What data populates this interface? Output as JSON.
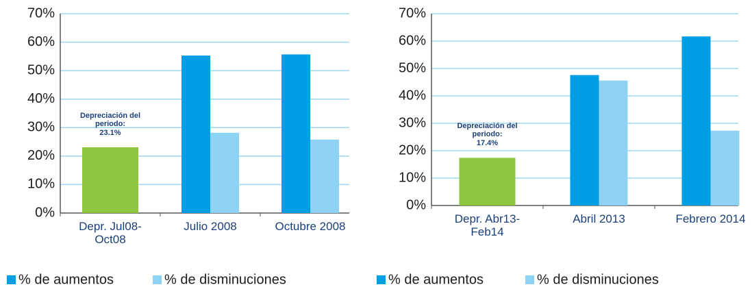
{
  "chart_data": [
    {
      "type": "bar",
      "categories": [
        "Depr. Jul08-Oct08",
        "Julio 2008",
        "Octubre 2008"
      ],
      "series": [
        {
          "name": "% de aumentos",
          "color": "#009fe3",
          "values": [
            null,
            55.3,
            55.7
          ]
        },
        {
          "name": "% de disminuciones",
          "color": "#8fd3f4",
          "values": [
            null,
            28.2,
            25.8
          ]
        }
      ],
      "highlight": {
        "label": "Depreciación del periodo:",
        "value": 23.1,
        "value_label": "23.1%",
        "color": "#8dc63f"
      },
      "ylim": [
        0,
        70
      ],
      "yticks": [
        {
          "value": 0,
          "label": "0%"
        },
        {
          "value": 10,
          "label": "10%"
        },
        {
          "value": 20,
          "label": "20%"
        },
        {
          "value": 30,
          "label": "30%"
        },
        {
          "value": 40,
          "label": "40%"
        },
        {
          "value": 50,
          "label": "50%"
        },
        {
          "value": 60,
          "label": "60%"
        },
        {
          "value": 70,
          "label": "70%"
        }
      ],
      "grid": true,
      "legend": "bottom"
    },
    {
      "type": "bar",
      "categories": [
        "Depr. Abr13-Feb14",
        "Abril 2013",
        "Febrero 2014"
      ],
      "series": [
        {
          "name": "% de aumentos",
          "color": "#009fe3",
          "values": [
            null,
            47.6,
            61.7
          ]
        },
        {
          "name": "% de disminuciones",
          "color": "#8fd3f4",
          "values": [
            null,
            45.6,
            27.3
          ]
        }
      ],
      "highlight": {
        "label": "Depreciación del periodo:",
        "value": 17.4,
        "value_label": "17.4%",
        "color": "#8dc63f"
      },
      "ylim": [
        0,
        70
      ],
      "yticks": [
        {
          "value": 0,
          "label": "0%"
        },
        {
          "value": 10,
          "label": "10%"
        },
        {
          "value": 20,
          "label": "20%"
        },
        {
          "value": 30,
          "label": "30%"
        },
        {
          "value": 40,
          "label": "40%"
        },
        {
          "value": 50,
          "label": "50%"
        },
        {
          "value": 60,
          "label": "60%"
        },
        {
          "value": 70,
          "label": "70%"
        }
      ],
      "grid": true,
      "legend": "bottom"
    }
  ]
}
